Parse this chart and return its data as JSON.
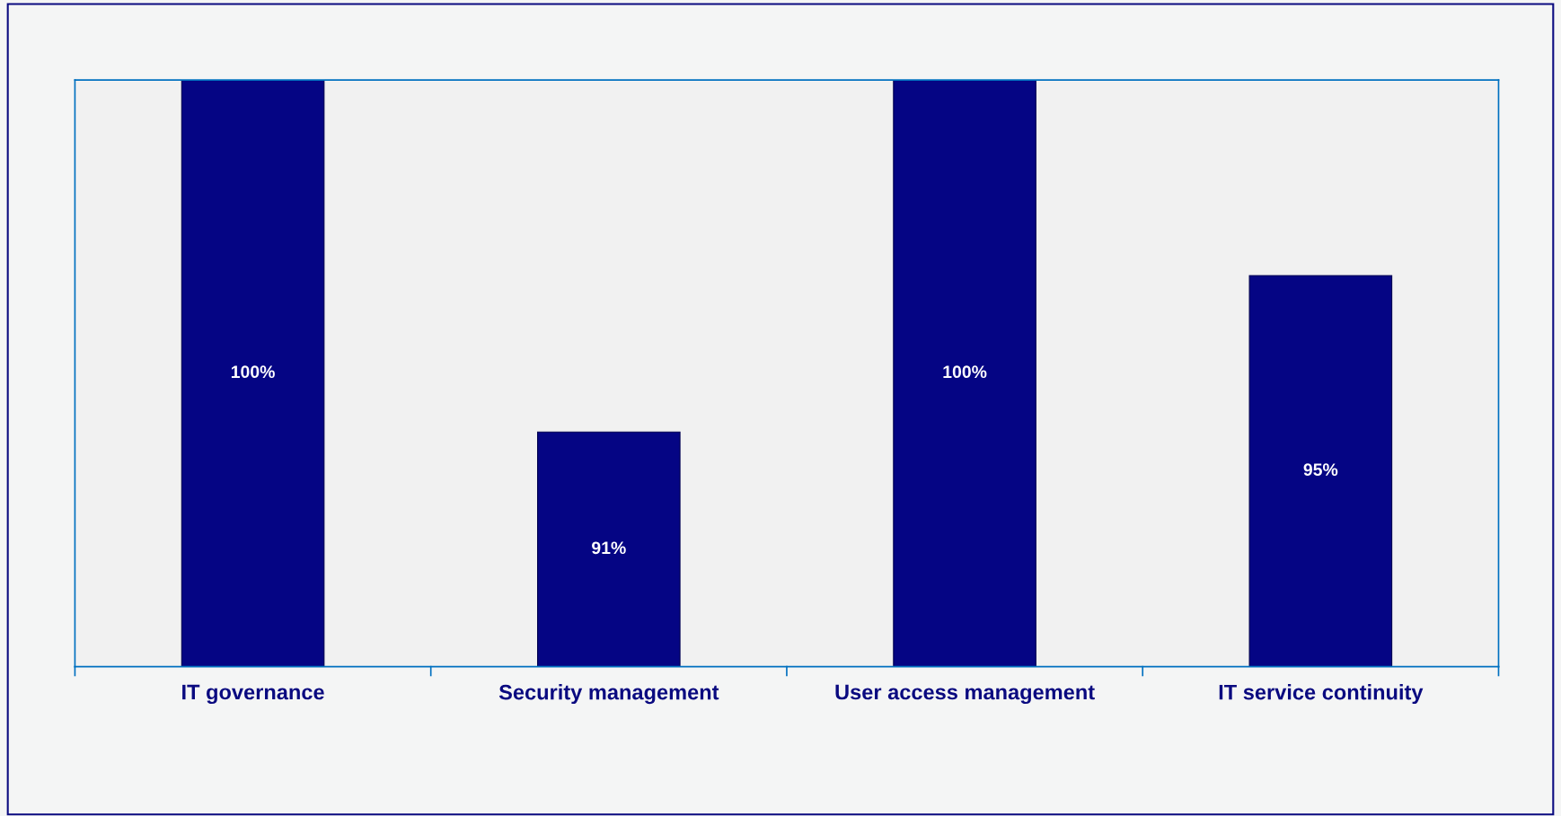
{
  "chart_data": {
    "type": "bar",
    "categories": [
      "IT governance",
      "Security management",
      "User access management",
      "IT service continuity"
    ],
    "values": [
      100,
      91,
      100,
      95
    ],
    "color": "#050584",
    "ylim": [
      85,
      100
    ],
    "value_labels": [
      "100%",
      "91%",
      "100%",
      "95%"
    ],
    "tick_labels": "x",
    "grid": false,
    "legend": false
  }
}
